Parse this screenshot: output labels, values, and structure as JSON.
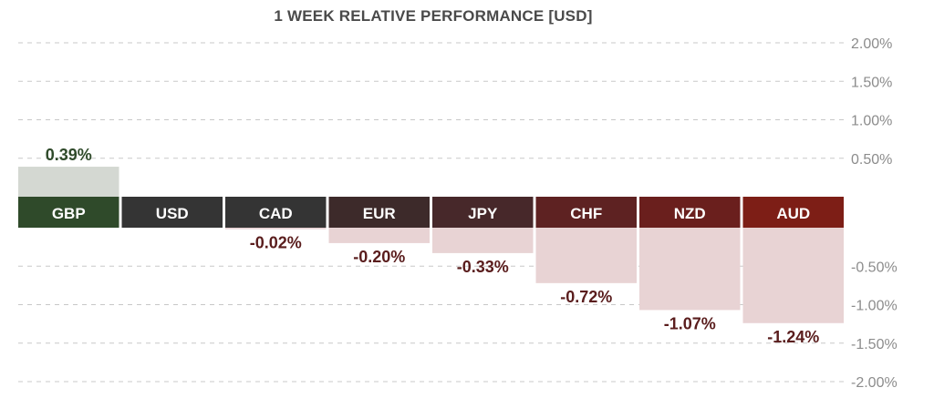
{
  "chart_data": {
    "type": "bar",
    "title": "1 WEEK RELATIVE PERFORMANCE  [USD]",
    "xlabel": "",
    "ylabel": "",
    "categories": [
      "GBP",
      "USD",
      "CAD",
      "EUR",
      "JPY",
      "CHF",
      "NZD",
      "AUD"
    ],
    "values": [
      0.39,
      0,
      -0.02,
      -0.2,
      -0.33,
      -0.72,
      -1.07,
      -1.24
    ],
    "value_labels": [
      "0.39%",
      "",
      "-0.02%",
      "-0.20%",
      "-0.33%",
      "-0.72%",
      "-1.07%",
      "-1.24%"
    ],
    "label_colors": [
      "#2f4a2a",
      "#343434",
      "#343434",
      "#3d2a2a",
      "#47282a",
      "#5e2222",
      "#6a1f1d",
      "#7d1e16"
    ],
    "positive_fill": "#d4d8d2",
    "negative_fill": "#e8d3d4",
    "positive_text": "#2f4a2a",
    "negative_text": "#5a1d1d",
    "y_ticks": [
      2.0,
      1.5,
      1.0,
      0.5,
      -0.5,
      -1.0,
      -1.5,
      -2.0
    ],
    "y_tick_labels": [
      "2.00%",
      "1.50%",
      "1.00%",
      "0.50%",
      "-0.50%",
      "-1.00%",
      "-1.50%",
      "-2.00%"
    ],
    "ylim": [
      -2.0,
      2.0
    ],
    "grid": true,
    "legend": "none"
  }
}
